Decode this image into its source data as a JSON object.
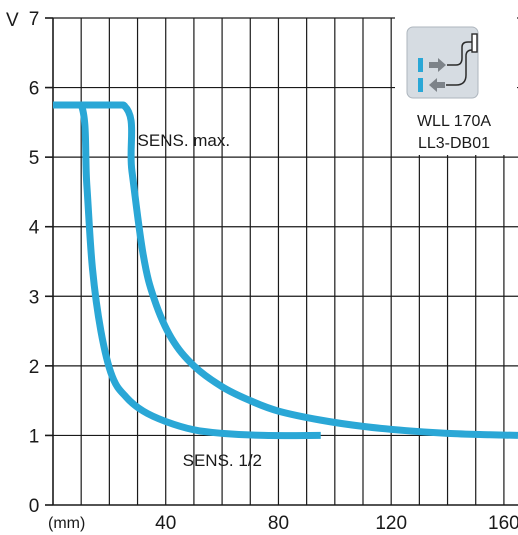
{
  "chart_data": {
    "type": "line",
    "ylabel": "V",
    "xlabel": "(mm)",
    "xlim": [
      0,
      165
    ],
    "ylim": [
      0,
      7
    ],
    "x_ticks": [
      40,
      80,
      120,
      160
    ],
    "y_ticks": [
      0,
      1,
      2,
      3,
      4,
      5,
      6,
      7
    ],
    "grid": true,
    "series": [
      {
        "name": "SENS. max.",
        "values": [
          [
            0,
            5.75
          ],
          [
            25,
            5.75
          ],
          [
            28,
            4.8
          ],
          [
            32,
            3.6
          ],
          [
            36,
            2.95
          ],
          [
            42,
            2.4
          ],
          [
            50,
            2.0
          ],
          [
            60,
            1.7
          ],
          [
            70,
            1.5
          ],
          [
            80,
            1.35
          ],
          [
            95,
            1.22
          ],
          [
            110,
            1.13
          ],
          [
            125,
            1.07
          ],
          [
            140,
            1.03
          ],
          [
            155,
            1.01
          ],
          [
            165,
            1.0
          ]
        ]
      },
      {
        "name": "SENS. 1/2",
        "values": [
          [
            0,
            5.75
          ],
          [
            10,
            5.75
          ],
          [
            12,
            4.6
          ],
          [
            14,
            3.4
          ],
          [
            17,
            2.5
          ],
          [
            21,
            1.85
          ],
          [
            26,
            1.55
          ],
          [
            32,
            1.35
          ],
          [
            40,
            1.2
          ],
          [
            50,
            1.08
          ],
          [
            60,
            1.03
          ],
          [
            75,
            1.0
          ],
          [
            95,
            1.0
          ]
        ]
      }
    ],
    "annotations": [
      {
        "text": "SENS. max.",
        "x": 30,
        "y": 5.25
      },
      {
        "text": "SENS. 1/2",
        "x": 46,
        "y": 0.65
      }
    ],
    "line_color": "#2aa7d6"
  },
  "device": {
    "line1": "WLL 170A",
    "line2": "LL3-DB01",
    "icon": "fiber-optic-sensor-icon"
  }
}
